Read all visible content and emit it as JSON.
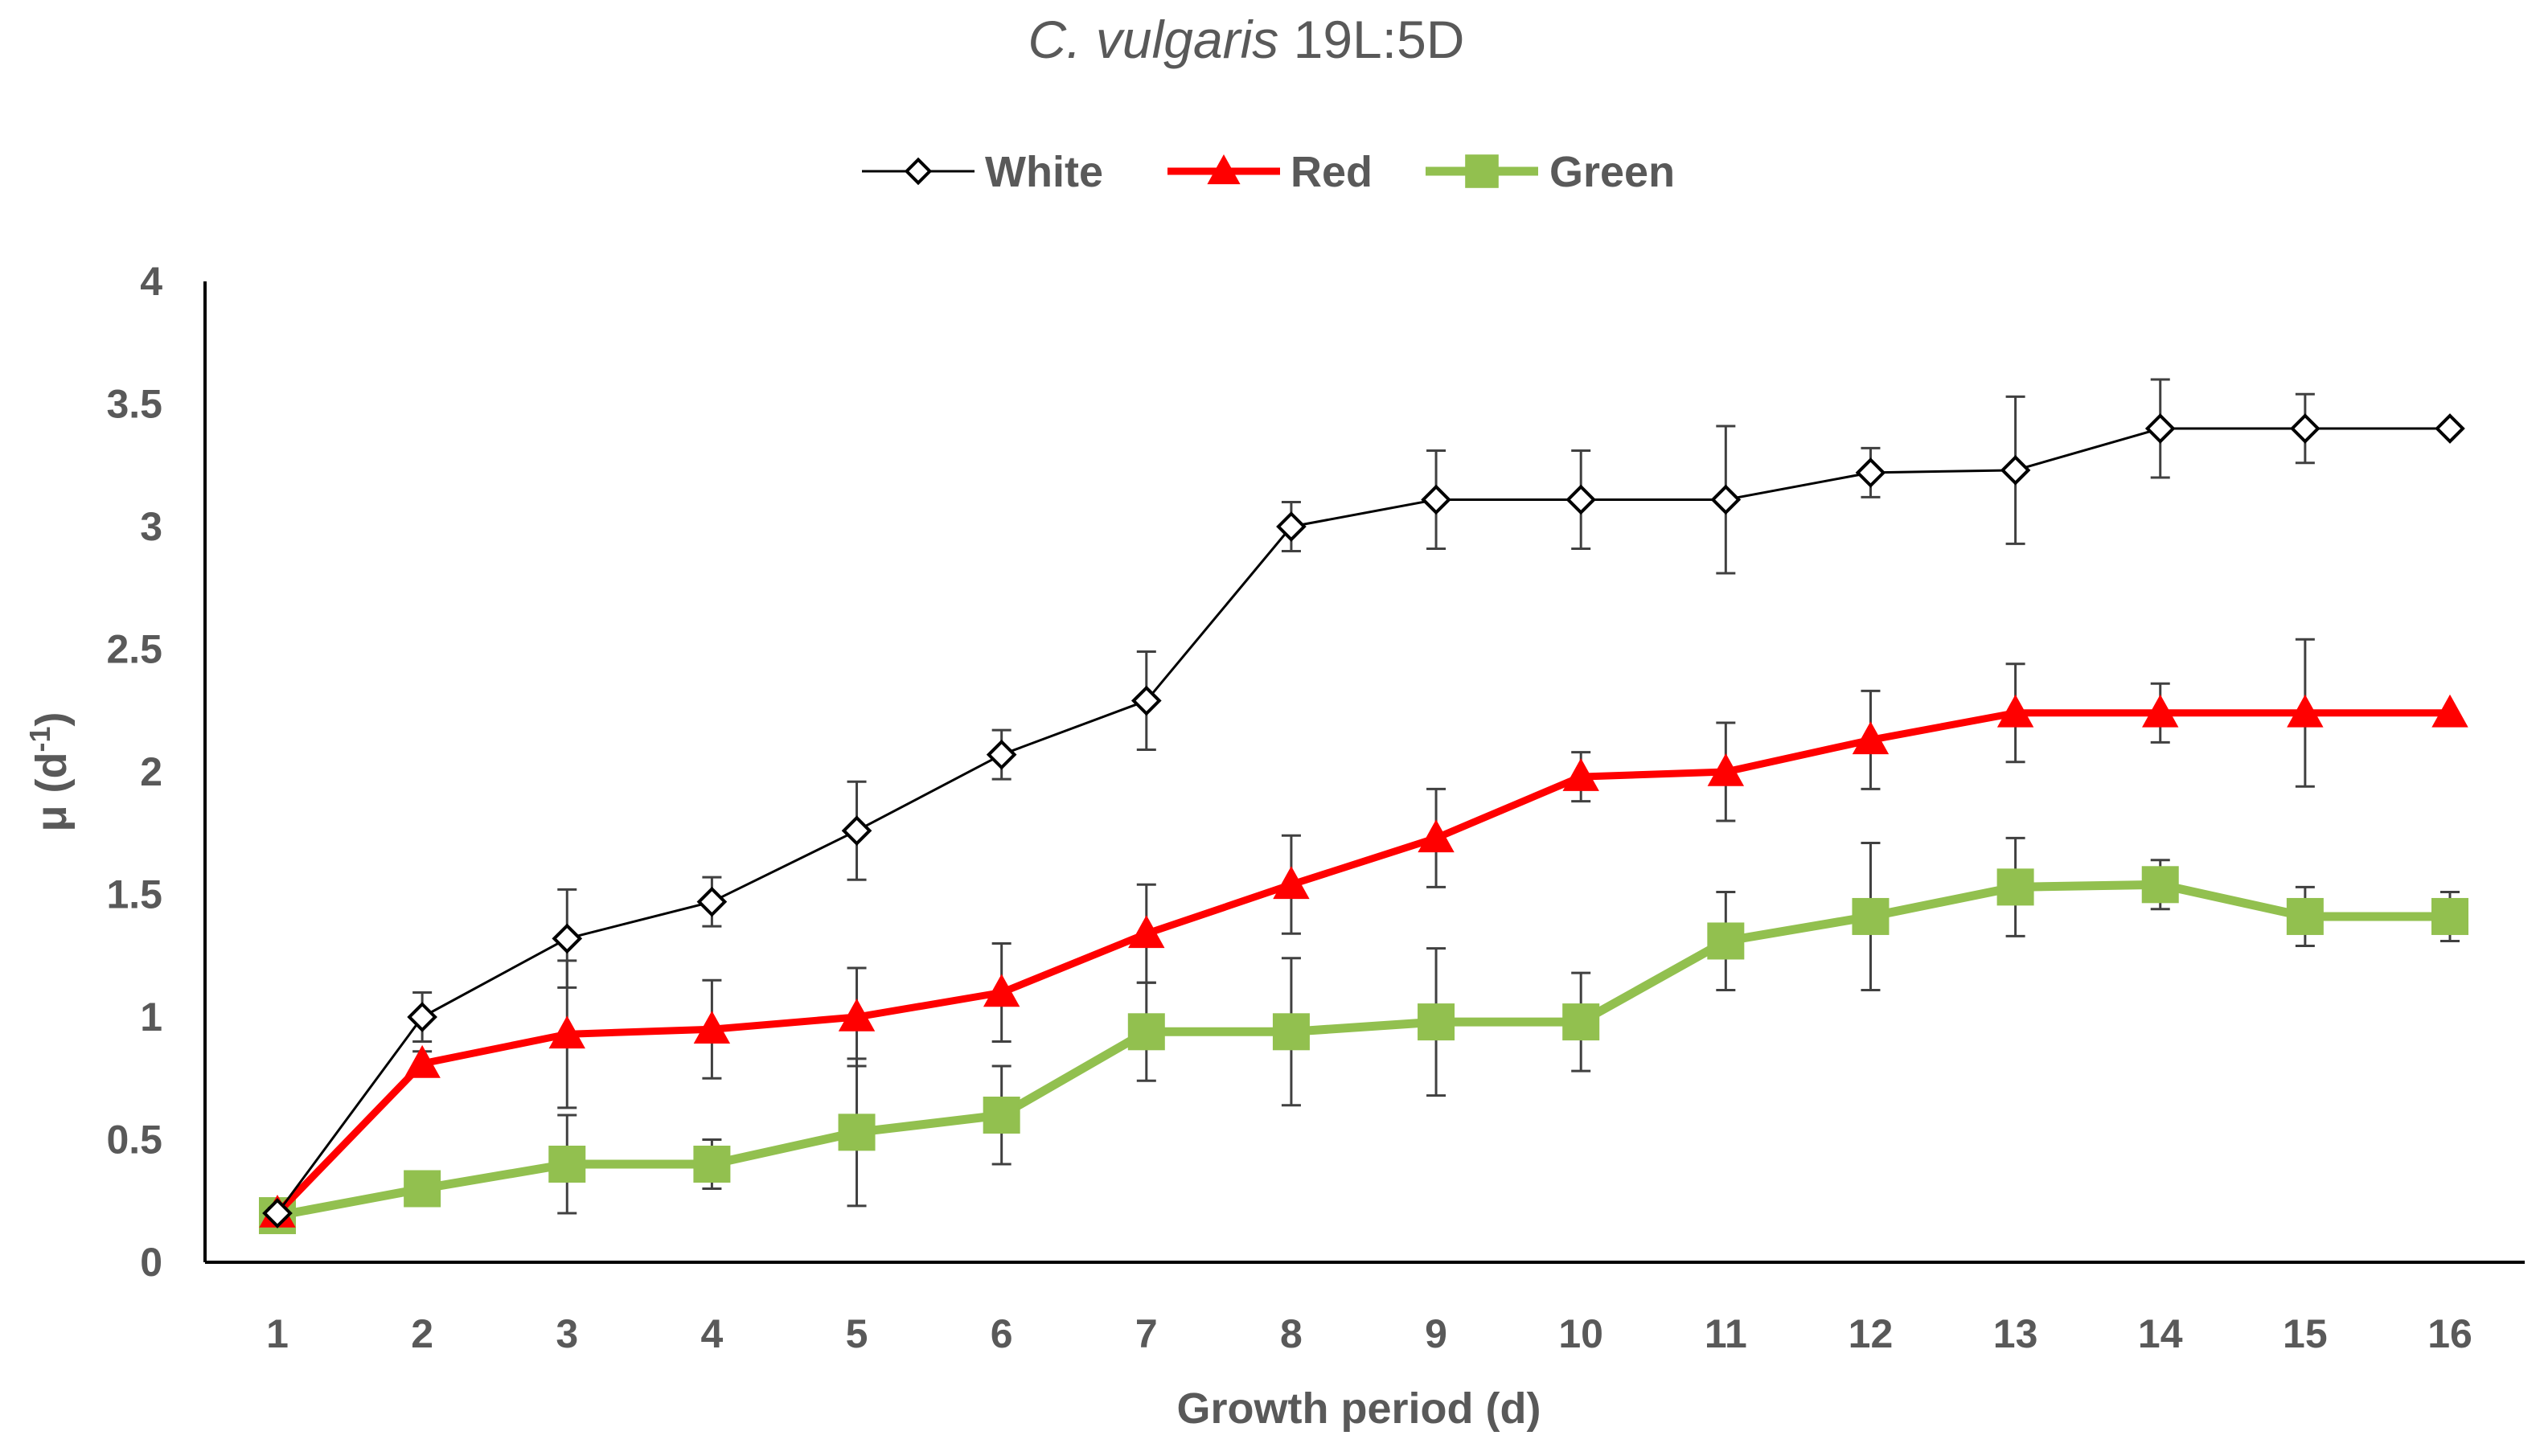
{
  "chart_data": {
    "type": "line",
    "title_italic": "C. vulgaris",
    "title_rest": " 19L:5D",
    "xlabel": "Growth period (d)",
    "ylabel_main": "μ (d",
    "ylabel_sup": "-1",
    "ylabel_close": ")",
    "categories": [
      "1",
      "2",
      "3",
      "4",
      "5",
      "6",
      "7",
      "8",
      "9",
      "10",
      "11",
      "12",
      "13",
      "14",
      "15",
      "16"
    ],
    "ylim": [
      0,
      4
    ],
    "yticks": [
      0,
      0.5,
      1,
      1.5,
      2,
      2.5,
      3,
      3.5,
      4
    ],
    "ytick_labels": [
      "0",
      "0.5",
      "1",
      "1.5",
      "2",
      "2.5",
      "3",
      "3.5",
      "4"
    ],
    "legend_position": "top",
    "series": [
      {
        "name": "White",
        "color": "#000000",
        "marker": "diamond-open",
        "values": [
          0.2,
          1.0,
          1.32,
          1.47,
          1.76,
          2.07,
          2.29,
          3.0,
          3.11,
          3.11,
          3.11,
          3.22,
          3.23,
          3.4,
          3.4,
          3.4
        ],
        "errors": [
          0.02,
          0.1,
          0.2,
          0.1,
          0.2,
          0.1,
          0.2,
          0.1,
          0.2,
          0.2,
          0.3,
          0.1,
          0.3,
          0.2,
          0.14,
          0.0
        ]
      },
      {
        "name": "Red",
        "color": "#ff0000",
        "marker": "triangle",
        "values": [
          0.2,
          0.81,
          0.93,
          0.95,
          1.0,
          1.1,
          1.34,
          1.54,
          1.73,
          1.98,
          2.0,
          2.13,
          2.24,
          2.24,
          2.24,
          2.24
        ],
        "errors": [
          0.02,
          0.05,
          0.3,
          0.2,
          0.2,
          0.2,
          0.2,
          0.2,
          0.2,
          0.1,
          0.2,
          0.2,
          0.2,
          0.12,
          0.3,
          0.0
        ]
      },
      {
        "name": "Green",
        "color": "#92c04f",
        "marker": "square",
        "values": [
          0.19,
          0.3,
          0.4,
          0.4,
          0.53,
          0.6,
          0.94,
          0.94,
          0.98,
          0.98,
          1.31,
          1.41,
          1.53,
          1.54,
          1.41,
          1.41
        ],
        "errors": [
          0.02,
          0.05,
          0.2,
          0.1,
          0.3,
          0.2,
          0.2,
          0.3,
          0.3,
          0.2,
          0.2,
          0.3,
          0.2,
          0.1,
          0.12,
          0.1
        ]
      }
    ]
  }
}
